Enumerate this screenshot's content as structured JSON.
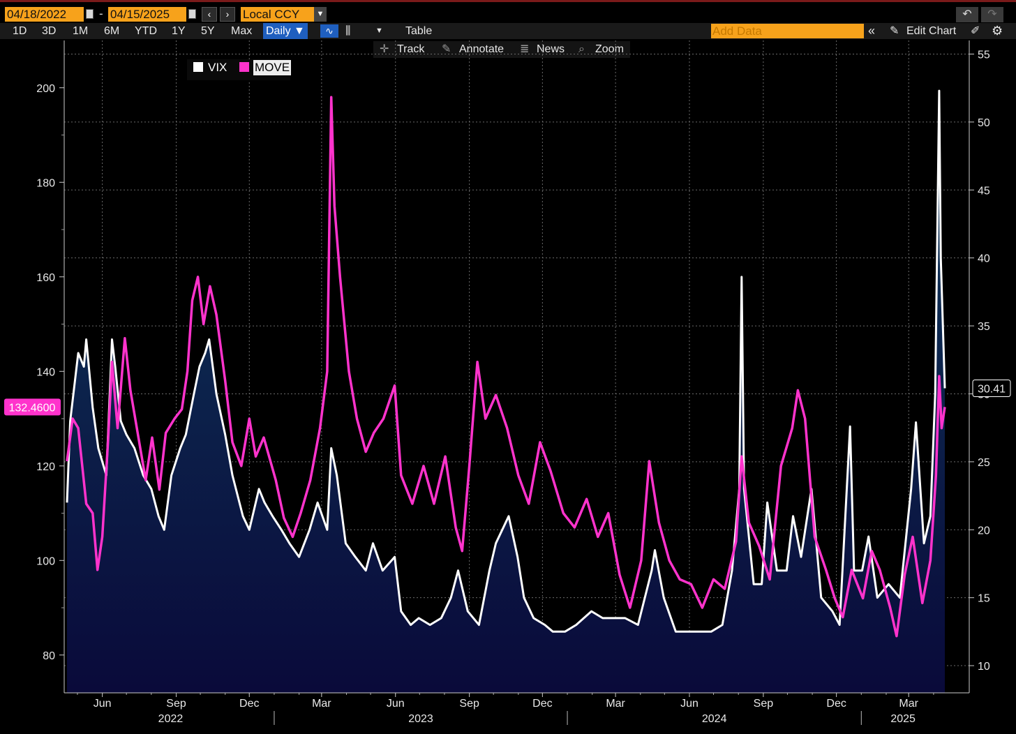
{
  "header": {
    "start_date": "04/18/2022",
    "separator": "-",
    "end_date": "04/15/2025",
    "prev_icon": "‹",
    "next_icon": "›",
    "currency": "Local CCY"
  },
  "toolbar": {
    "periods": [
      "1D",
      "3D",
      "1M",
      "6M",
      "YTD",
      "1Y",
      "5Y",
      "Max"
    ],
    "frequency": "Daily ▼",
    "table_label": "Table",
    "add_data_placeholder": "Add Data",
    "edit_chart_label": "Edit Chart"
  },
  "subbar": {
    "track": "Track",
    "annotate": "Annotate",
    "news": "News",
    "zoom": "Zoom"
  },
  "legend": [
    {
      "name": "VIX",
      "color": "#ffffff"
    },
    {
      "name": "MOVE",
      "color": "#ff33cc"
    }
  ],
  "chart_data": {
    "type": "line",
    "title": "",
    "x_axis": {
      "month_ticks": [
        "Jun",
        "Sep",
        "Dec",
        "Mar",
        "Jun",
        "Sep",
        "Dec",
        "Mar",
        "Jun",
        "Sep",
        "Dec",
        "Mar"
      ],
      "year_labels": [
        "2022",
        "2023",
        "2024",
        "2025"
      ],
      "range": [
        "2022-04-18",
        "2025-04-15"
      ]
    },
    "y_left": {
      "label": "MOVE",
      "ticks": [
        80,
        100,
        120,
        140,
        160,
        180,
        200
      ],
      "range": [
        72,
        210
      ]
    },
    "y_right": {
      "label": "VIX",
      "ticks": [
        10,
        15,
        20,
        25,
        30,
        35,
        40,
        45,
        50,
        55
      ],
      "range": [
        8,
        56
      ]
    },
    "last_values": {
      "MOVE": "132.4600",
      "VIX": "30.41"
    },
    "grid": true,
    "series": [
      {
        "name": "VIX",
        "axis": "right",
        "color": "#ffffff",
        "area_fill": true,
        "points": [
          [
            "2022-04-18",
            22
          ],
          [
            "2022-04-22",
            28
          ],
          [
            "2022-05-02",
            33
          ],
          [
            "2022-05-09",
            32
          ],
          [
            "2022-05-12",
            34
          ],
          [
            "2022-05-20",
            29
          ],
          [
            "2022-05-27",
            26
          ],
          [
            "2022-06-06",
            24
          ],
          [
            "2022-06-13",
            34
          ],
          [
            "2022-06-17",
            32
          ],
          [
            "2022-06-24",
            28
          ],
          [
            "2022-07-01",
            27
          ],
          [
            "2022-07-11",
            26
          ],
          [
            "2022-07-22",
            24
          ],
          [
            "2022-08-01",
            23
          ],
          [
            "2022-08-10",
            21
          ],
          [
            "2022-08-17",
            20
          ],
          [
            "2022-08-26",
            24
          ],
          [
            "2022-09-06",
            26
          ],
          [
            "2022-09-13",
            27
          ],
          [
            "2022-09-23",
            30
          ],
          [
            "2022-09-30",
            32
          ],
          [
            "2022-10-07",
            33
          ],
          [
            "2022-10-12",
            34
          ],
          [
            "2022-10-21",
            30
          ],
          [
            "2022-11-01",
            27
          ],
          [
            "2022-11-10",
            24
          ],
          [
            "2022-11-23",
            21
          ],
          [
            "2022-12-01",
            20
          ],
          [
            "2022-12-13",
            23
          ],
          [
            "2022-12-20",
            22
          ],
          [
            "2022-12-30",
            21
          ],
          [
            "2023-01-10",
            20
          ],
          [
            "2023-01-20",
            19
          ],
          [
            "2023-02-01",
            18
          ],
          [
            "2023-02-14",
            20
          ],
          [
            "2023-02-24",
            22
          ],
          [
            "2023-03-08",
            20
          ],
          [
            "2023-03-13",
            26
          ],
          [
            "2023-03-20",
            24
          ],
          [
            "2023-03-31",
            19
          ],
          [
            "2023-04-12",
            18
          ],
          [
            "2023-04-25",
            17
          ],
          [
            "2023-05-04",
            19
          ],
          [
            "2023-05-16",
            17
          ],
          [
            "2023-05-31",
            18
          ],
          [
            "2023-06-08",
            14
          ],
          [
            "2023-06-20",
            13
          ],
          [
            "2023-06-30",
            13.5
          ],
          [
            "2023-07-14",
            13
          ],
          [
            "2023-07-28",
            13.5
          ],
          [
            "2023-08-09",
            15
          ],
          [
            "2023-08-18",
            17
          ],
          [
            "2023-08-30",
            14
          ],
          [
            "2023-09-13",
            13
          ],
          [
            "2023-09-26",
            17
          ],
          [
            "2023-10-04",
            19
          ],
          [
            "2023-10-20",
            21
          ],
          [
            "2023-10-31",
            18
          ],
          [
            "2023-11-08",
            15
          ],
          [
            "2023-11-20",
            13.5
          ],
          [
            "2023-12-04",
            13
          ],
          [
            "2023-12-14",
            12.5
          ],
          [
            "2023-12-29",
            12.5
          ],
          [
            "2024-01-12",
            13
          ],
          [
            "2024-01-31",
            14
          ],
          [
            "2024-02-14",
            13.5
          ],
          [
            "2024-02-28",
            13.5
          ],
          [
            "2024-03-13",
            13.5
          ],
          [
            "2024-03-29",
            13
          ],
          [
            "2024-04-15",
            17
          ],
          [
            "2024-04-19",
            18.5
          ],
          [
            "2024-04-30",
            15
          ],
          [
            "2024-05-15",
            12.5
          ],
          [
            "2024-05-31",
            12.5
          ],
          [
            "2024-06-14",
            12.5
          ],
          [
            "2024-06-28",
            12.5
          ],
          [
            "2024-07-12",
            13
          ],
          [
            "2024-07-24",
            17
          ],
          [
            "2024-08-02",
            23
          ],
          [
            "2024-08-05",
            38.6
          ],
          [
            "2024-08-08",
            23
          ],
          [
            "2024-08-20",
            16
          ],
          [
            "2024-08-30",
            16
          ],
          [
            "2024-09-06",
            22
          ],
          [
            "2024-09-18",
            17
          ],
          [
            "2024-09-30",
            17
          ],
          [
            "2024-10-08",
            21
          ],
          [
            "2024-10-18",
            18
          ],
          [
            "2024-10-31",
            23
          ],
          [
            "2024-11-12",
            15
          ],
          [
            "2024-11-26",
            14
          ],
          [
            "2024-12-05",
            13
          ],
          [
            "2024-12-18",
            27.6
          ],
          [
            "2024-12-23",
            17
          ],
          [
            "2025-01-02",
            17
          ],
          [
            "2025-01-10",
            19.5
          ],
          [
            "2025-01-21",
            15
          ],
          [
            "2025-02-04",
            16
          ],
          [
            "2025-02-18",
            15
          ],
          [
            "2025-03-04",
            23
          ],
          [
            "2025-03-10",
            27.9
          ],
          [
            "2025-03-20",
            19
          ],
          [
            "2025-03-28",
            21
          ],
          [
            "2025-04-03",
            30
          ],
          [
            "2025-04-08",
            52.3
          ],
          [
            "2025-04-10",
            40
          ],
          [
            "2025-04-15",
            30.41
          ]
        ]
      },
      {
        "name": "MOVE",
        "axis": "left",
        "color": "#ff33cc",
        "area_fill": false,
        "points": [
          [
            "2022-04-18",
            121
          ],
          [
            "2022-04-25",
            130
          ],
          [
            "2022-05-02",
            128
          ],
          [
            "2022-05-12",
            112
          ],
          [
            "2022-05-20",
            110
          ],
          [
            "2022-05-26",
            98
          ],
          [
            "2022-06-01",
            105
          ],
          [
            "2022-06-08",
            125
          ],
          [
            "2022-06-13",
            142
          ],
          [
            "2022-06-20",
            128
          ],
          [
            "2022-06-29",
            147
          ],
          [
            "2022-07-06",
            136
          ],
          [
            "2022-07-14",
            128
          ],
          [
            "2022-07-25",
            117
          ],
          [
            "2022-08-02",
            126
          ],
          [
            "2022-08-11",
            115
          ],
          [
            "2022-08-19",
            127
          ],
          [
            "2022-08-30",
            130
          ],
          [
            "2022-09-08",
            132
          ],
          [
            "2022-09-15",
            140
          ],
          [
            "2022-09-21",
            155
          ],
          [
            "2022-09-28",
            160
          ],
          [
            "2022-10-05",
            150
          ],
          [
            "2022-10-13",
            158
          ],
          [
            "2022-10-21",
            152
          ],
          [
            "2022-11-01",
            138
          ],
          [
            "2022-11-10",
            125
          ],
          [
            "2022-11-21",
            120
          ],
          [
            "2022-12-01",
            130
          ],
          [
            "2022-12-09",
            122
          ],
          [
            "2022-12-19",
            126
          ],
          [
            "2023-01-03",
            117
          ],
          [
            "2023-01-13",
            109
          ],
          [
            "2023-01-24",
            105
          ],
          [
            "2023-02-03",
            110
          ],
          [
            "2023-02-15",
            117
          ],
          [
            "2023-02-27",
            128
          ],
          [
            "2023-03-08",
            140
          ],
          [
            "2023-03-13",
            198
          ],
          [
            "2023-03-17",
            175
          ],
          [
            "2023-03-24",
            160
          ],
          [
            "2023-04-04",
            140
          ],
          [
            "2023-04-14",
            130
          ],
          [
            "2023-04-25",
            123
          ],
          [
            "2023-05-05",
            127
          ],
          [
            "2023-05-17",
            130
          ],
          [
            "2023-05-31",
            137
          ],
          [
            "2023-06-08",
            118
          ],
          [
            "2023-06-22",
            112
          ],
          [
            "2023-07-06",
            120
          ],
          [
            "2023-07-19",
            112
          ],
          [
            "2023-08-02",
            122
          ],
          [
            "2023-08-15",
            107
          ],
          [
            "2023-08-23",
            102
          ],
          [
            "2023-09-01",
            120
          ],
          [
            "2023-09-11",
            142
          ],
          [
            "2023-09-21",
            130
          ],
          [
            "2023-10-04",
            135
          ],
          [
            "2023-10-18",
            128
          ],
          [
            "2023-11-01",
            118
          ],
          [
            "2023-11-14",
            112
          ],
          [
            "2023-11-28",
            125
          ],
          [
            "2023-12-11",
            119
          ],
          [
            "2023-12-27",
            110
          ],
          [
            "2024-01-10",
            107
          ],
          [
            "2024-01-25",
            113
          ],
          [
            "2024-02-08",
            105
          ],
          [
            "2024-02-21",
            110
          ],
          [
            "2024-03-06",
            97
          ],
          [
            "2024-03-19",
            90
          ],
          [
            "2024-04-02",
            100
          ],
          [
            "2024-04-12",
            121
          ],
          [
            "2024-04-24",
            108
          ],
          [
            "2024-05-07",
            100
          ],
          [
            "2024-05-20",
            96
          ],
          [
            "2024-06-03",
            95
          ],
          [
            "2024-06-17",
            90
          ],
          [
            "2024-07-01",
            96
          ],
          [
            "2024-07-15",
            94
          ],
          [
            "2024-07-29",
            104
          ],
          [
            "2024-08-05",
            122
          ],
          [
            "2024-08-14",
            108
          ],
          [
            "2024-08-27",
            103
          ],
          [
            "2024-09-09",
            96
          ],
          [
            "2024-09-23",
            120
          ],
          [
            "2024-10-07",
            128
          ],
          [
            "2024-10-14",
            136
          ],
          [
            "2024-10-23",
            130
          ],
          [
            "2024-11-04",
            105
          ],
          [
            "2024-11-18",
            98
          ],
          [
            "2024-11-29",
            92
          ],
          [
            "2024-12-09",
            88
          ],
          [
            "2024-12-20",
            98
          ],
          [
            "2025-01-03",
            92
          ],
          [
            "2025-01-14",
            102
          ],
          [
            "2025-01-24",
            98
          ],
          [
            "2025-02-06",
            90
          ],
          [
            "2025-02-14",
            84
          ],
          [
            "2025-02-24",
            97
          ],
          [
            "2025-03-06",
            105
          ],
          [
            "2025-03-18",
            91
          ],
          [
            "2025-03-28",
            100
          ],
          [
            "2025-04-04",
            118
          ],
          [
            "2025-04-08",
            139
          ],
          [
            "2025-04-11",
            128
          ],
          [
            "2025-04-15",
            132.46
          ]
        ]
      }
    ]
  },
  "colors": {
    "background": "#000000",
    "accent_orange": "#f7a21b",
    "active_blue": "#1f5fbf",
    "move_pink": "#ff33cc",
    "vix_white": "#ffffff",
    "area_top": "#0e3a5c",
    "area_bottom": "#0a0a3a"
  }
}
